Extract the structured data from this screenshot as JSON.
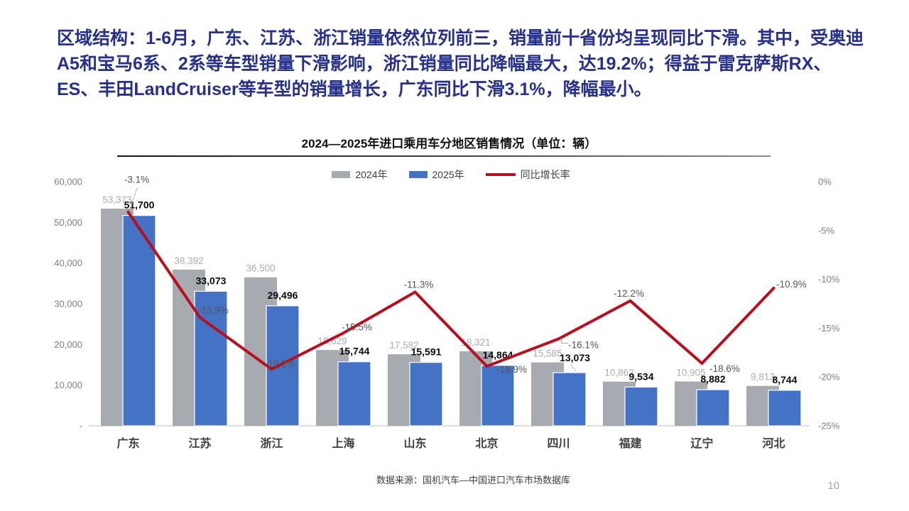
{
  "headline": {
    "text": "区域结构：1-6月，广东、江苏、浙江销量依然位列前三，销量前十省份均呈现同比下滑。其中，受奥迪A5和宝马6系、2系等车型销量下滑影响，浙江销量同比降幅最大，达19.2%；得益于雷克萨斯RX、ES、丰田LandCruiser等车型的销量增长，广东同比下滑3.1%，降幅最小。"
  },
  "chart_data": {
    "type": "bar+line",
    "title": "2024—2025年进口乘用车分地区销售情况（单位：辆）",
    "categories": [
      "广东",
      "江苏",
      "浙江",
      "上海",
      "山东",
      "北京",
      "四川",
      "福建",
      "辽宁",
      "河北"
    ],
    "series": [
      {
        "name": "2024年",
        "color": "#A7AAAF",
        "values": [
          53373,
          38392,
          36500,
          18629,
          17582,
          18321,
          15585,
          10862,
          10905,
          9813
        ]
      },
      {
        "name": "2025年",
        "color": "#4472C4",
        "values": [
          51700,
          33073,
          29496,
          15744,
          15591,
          14864,
          13073,
          9534,
          8882,
          8744
        ]
      }
    ],
    "line_series": {
      "name": "同比增长率",
      "color": "#B90E1E",
      "values": [
        -3.1,
        -13.9,
        -19.2,
        -15.5,
        -11.3,
        -18.9,
        -16.1,
        -12.2,
        -18.6,
        -10.9
      ]
    },
    "y_axis": {
      "ticks": [
        "60,000",
        "50,000",
        "40,000",
        "30,000",
        "20,000",
        "10,000",
        "-"
      ],
      "max": 60000,
      "min": 0
    },
    "y2_axis": {
      "ticks": [
        "0%",
        "-5%",
        "-10%",
        "-15%",
        "-20%",
        "-25%"
      ],
      "max": 0,
      "min": -25
    },
    "legend_position": "top",
    "grid": false,
    "label_colors": {
      "series2024": "#ABAEB4",
      "series2025": "#0A0A0A",
      "pct": "#555555",
      "axis": "#7F7F7F",
      "category": "#3F3F3F"
    }
  },
  "footer": {
    "source": "数据来源：国机汽车—中国进口汽车市场数据库",
    "page": "10"
  }
}
